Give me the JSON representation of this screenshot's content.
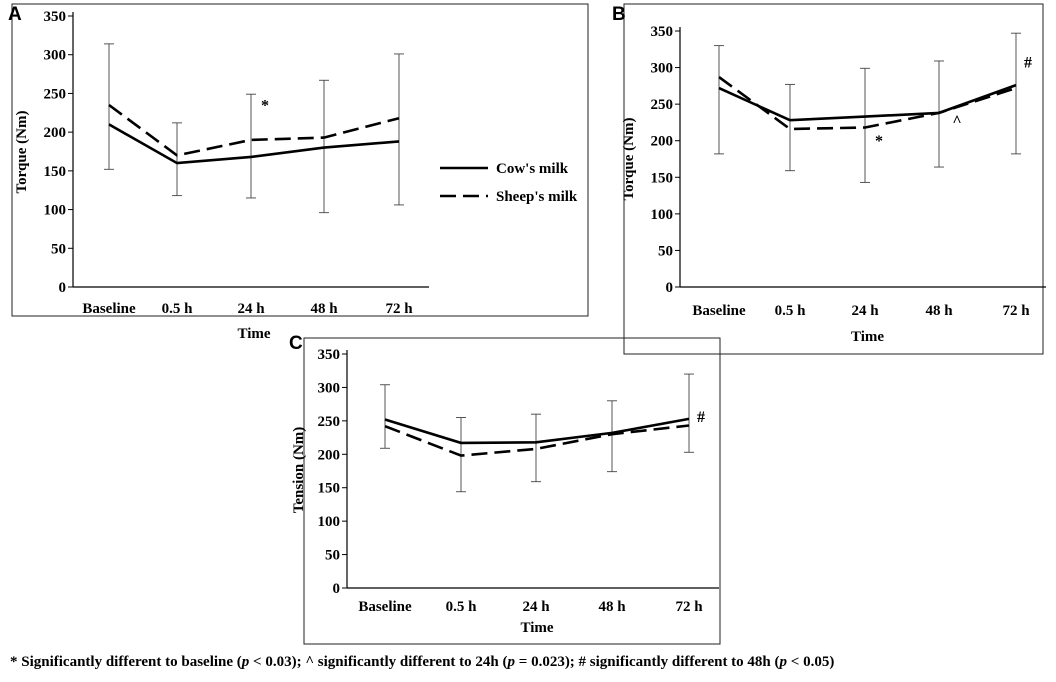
{
  "chart_data": [
    {
      "id": "A",
      "type": "line",
      "panel_label": "A",
      "ylabel": "Torque (Nm)",
      "xlabel": "Time",
      "categories": [
        "Baseline",
        "0.5 h",
        "24 h",
        "48 h",
        "72 h"
      ],
      "ylim": [
        0,
        350
      ],
      "yticks": [
        "0",
        "50",
        "100",
        "150",
        "200",
        "250",
        "300",
        "350"
      ],
      "series": [
        {
          "name": "Cow's milk",
          "style": "solid",
          "values": [
            210,
            160,
            168,
            180,
            188
          ]
        },
        {
          "name": "Sheep's milk",
          "style": "dashed",
          "values": [
            235,
            170,
            190,
            193,
            218
          ]
        }
      ],
      "error_bars": [
        [
          152,
          314
        ],
        [
          118,
          212
        ],
        [
          115,
          249
        ],
        [
          96,
          267
        ],
        [
          106,
          301
        ]
      ],
      "annotations": [
        {
          "text": "*",
          "category": "24 h",
          "value": 228
        }
      ]
    },
    {
      "id": "B",
      "type": "line",
      "panel_label": "B",
      "ylabel": "Torque (Nm)",
      "xlabel": "Time",
      "categories": [
        "Baseline",
        "0.5 h",
        "24 h",
        "48 h",
        "72 h"
      ],
      "ylim": [
        0,
        350
      ],
      "yticks": [
        "0",
        "50",
        "100",
        "150",
        "200",
        "250",
        "300",
        "350"
      ],
      "series": [
        {
          "name": "Cow's milk",
          "style": "solid",
          "values": [
            272,
            228,
            233,
            238,
            276
          ]
        },
        {
          "name": "Sheep's milk",
          "style": "dashed",
          "values": [
            287,
            216,
            218,
            238,
            272
          ]
        }
      ],
      "error_bars": [
        [
          182,
          330
        ],
        [
          159,
          277
        ],
        [
          143,
          299
        ],
        [
          164,
          309
        ],
        [
          182,
          347
        ]
      ],
      "annotations": [
        {
          "text": "*",
          "category": "24 h",
          "value": 193
        },
        {
          "text": "^",
          "category": "48 h",
          "value": 220
        },
        {
          "text": "#",
          "category": "72 h",
          "value": 300
        }
      ]
    },
    {
      "id": "C",
      "type": "line",
      "panel_label": "C",
      "ylabel": "Tension (Nm)",
      "xlabel": "Time",
      "categories": [
        "Baseline",
        "0.5 h",
        "24 h",
        "48 h",
        "72 h"
      ],
      "ylim": [
        0,
        350
      ],
      "yticks": [
        "0",
        "50",
        "100",
        "150",
        "200",
        "250",
        "300",
        "350"
      ],
      "series": [
        {
          "name": "Cow's milk",
          "style": "solid",
          "values": [
            252,
            217,
            218,
            232,
            253
          ]
        },
        {
          "name": "Sheep's milk",
          "style": "dashed",
          "values": [
            242,
            198,
            208,
            230,
            243
          ]
        }
      ],
      "error_bars": [
        [
          209,
          304
        ],
        [
          144,
          255
        ],
        [
          159,
          260
        ],
        [
          174,
          280
        ],
        [
          203,
          320
        ]
      ],
      "annotations": [
        {
          "text": "#",
          "category": "72 h",
          "value": 248
        }
      ]
    }
  ],
  "legend": {
    "items": [
      {
        "label": "Cow's milk",
        "style": "solid"
      },
      {
        "label": "Sheep's milk",
        "style": "dashed"
      }
    ]
  },
  "footnote": {
    "part1": "* Significantly different to baseline (",
    "p1": "p",
    "part2": " < 0.03); ^ significantly different to 24h (",
    "p2": "p",
    "part3": " = 0.023); # significantly different to 48h (",
    "p3": "p",
    "part4": " < 0.05)"
  }
}
